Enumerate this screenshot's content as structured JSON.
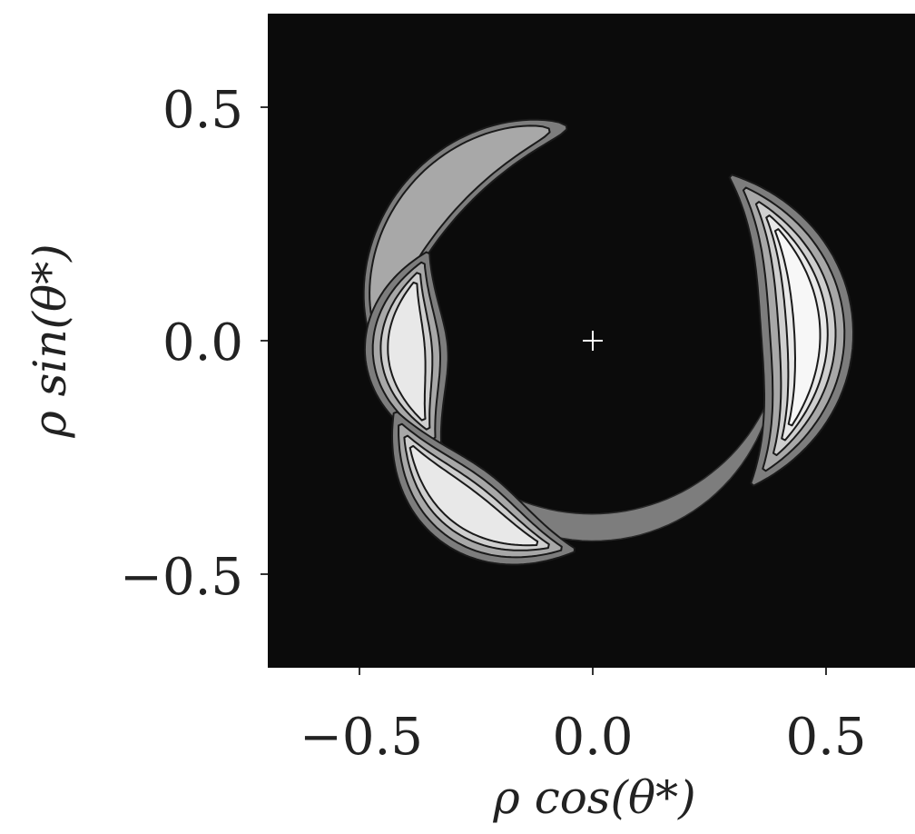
{
  "chart_data": {
    "type": "heatmap",
    "title": "",
    "xlabel": "ρ cos(θ*)",
    "ylabel": "ρ sin(θ*)",
    "xlim": [
      -0.7,
      0.7
    ],
    "ylim": [
      -0.7,
      0.7
    ],
    "x_ticks": [
      -0.5,
      0.0,
      0.5
    ],
    "y_ticks": [
      -0.5,
      0.0,
      0.5
    ],
    "x_tick_labels": [
      "−0.5",
      "0.0",
      "0.5"
    ],
    "y_tick_labels": [
      "0.5",
      "0.0",
      "−0.5"
    ],
    "center_marker": [
      0.0,
      0.0
    ],
    "background_color": "#0b0b0b",
    "contour_colors": [
      "#7d7d7d",
      "#a8a8a8",
      "#cfcfcf",
      "#e8e8e8",
      "#f7f7f7"
    ],
    "lobes": [
      {
        "name_hint": "upper-left",
        "center": [
          -0.32,
          0.32
        ],
        "peak": 0.45
      },
      {
        "name_hint": "left",
        "center": [
          -0.32,
          -0.1
        ],
        "peak": 0.85
      },
      {
        "name_hint": "lower-left",
        "center": [
          -0.25,
          -0.45
        ],
        "peak": 0.8
      },
      {
        "name_hint": "right",
        "center": [
          0.48,
          0.1
        ],
        "peak": 1.0
      }
    ]
  }
}
